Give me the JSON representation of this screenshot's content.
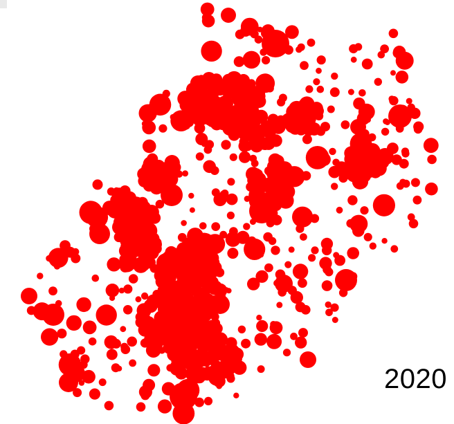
{
  "map": {
    "year_label": "2020",
    "dot_color": "#ff0000",
    "background_color": "#ffffff"
  }
}
